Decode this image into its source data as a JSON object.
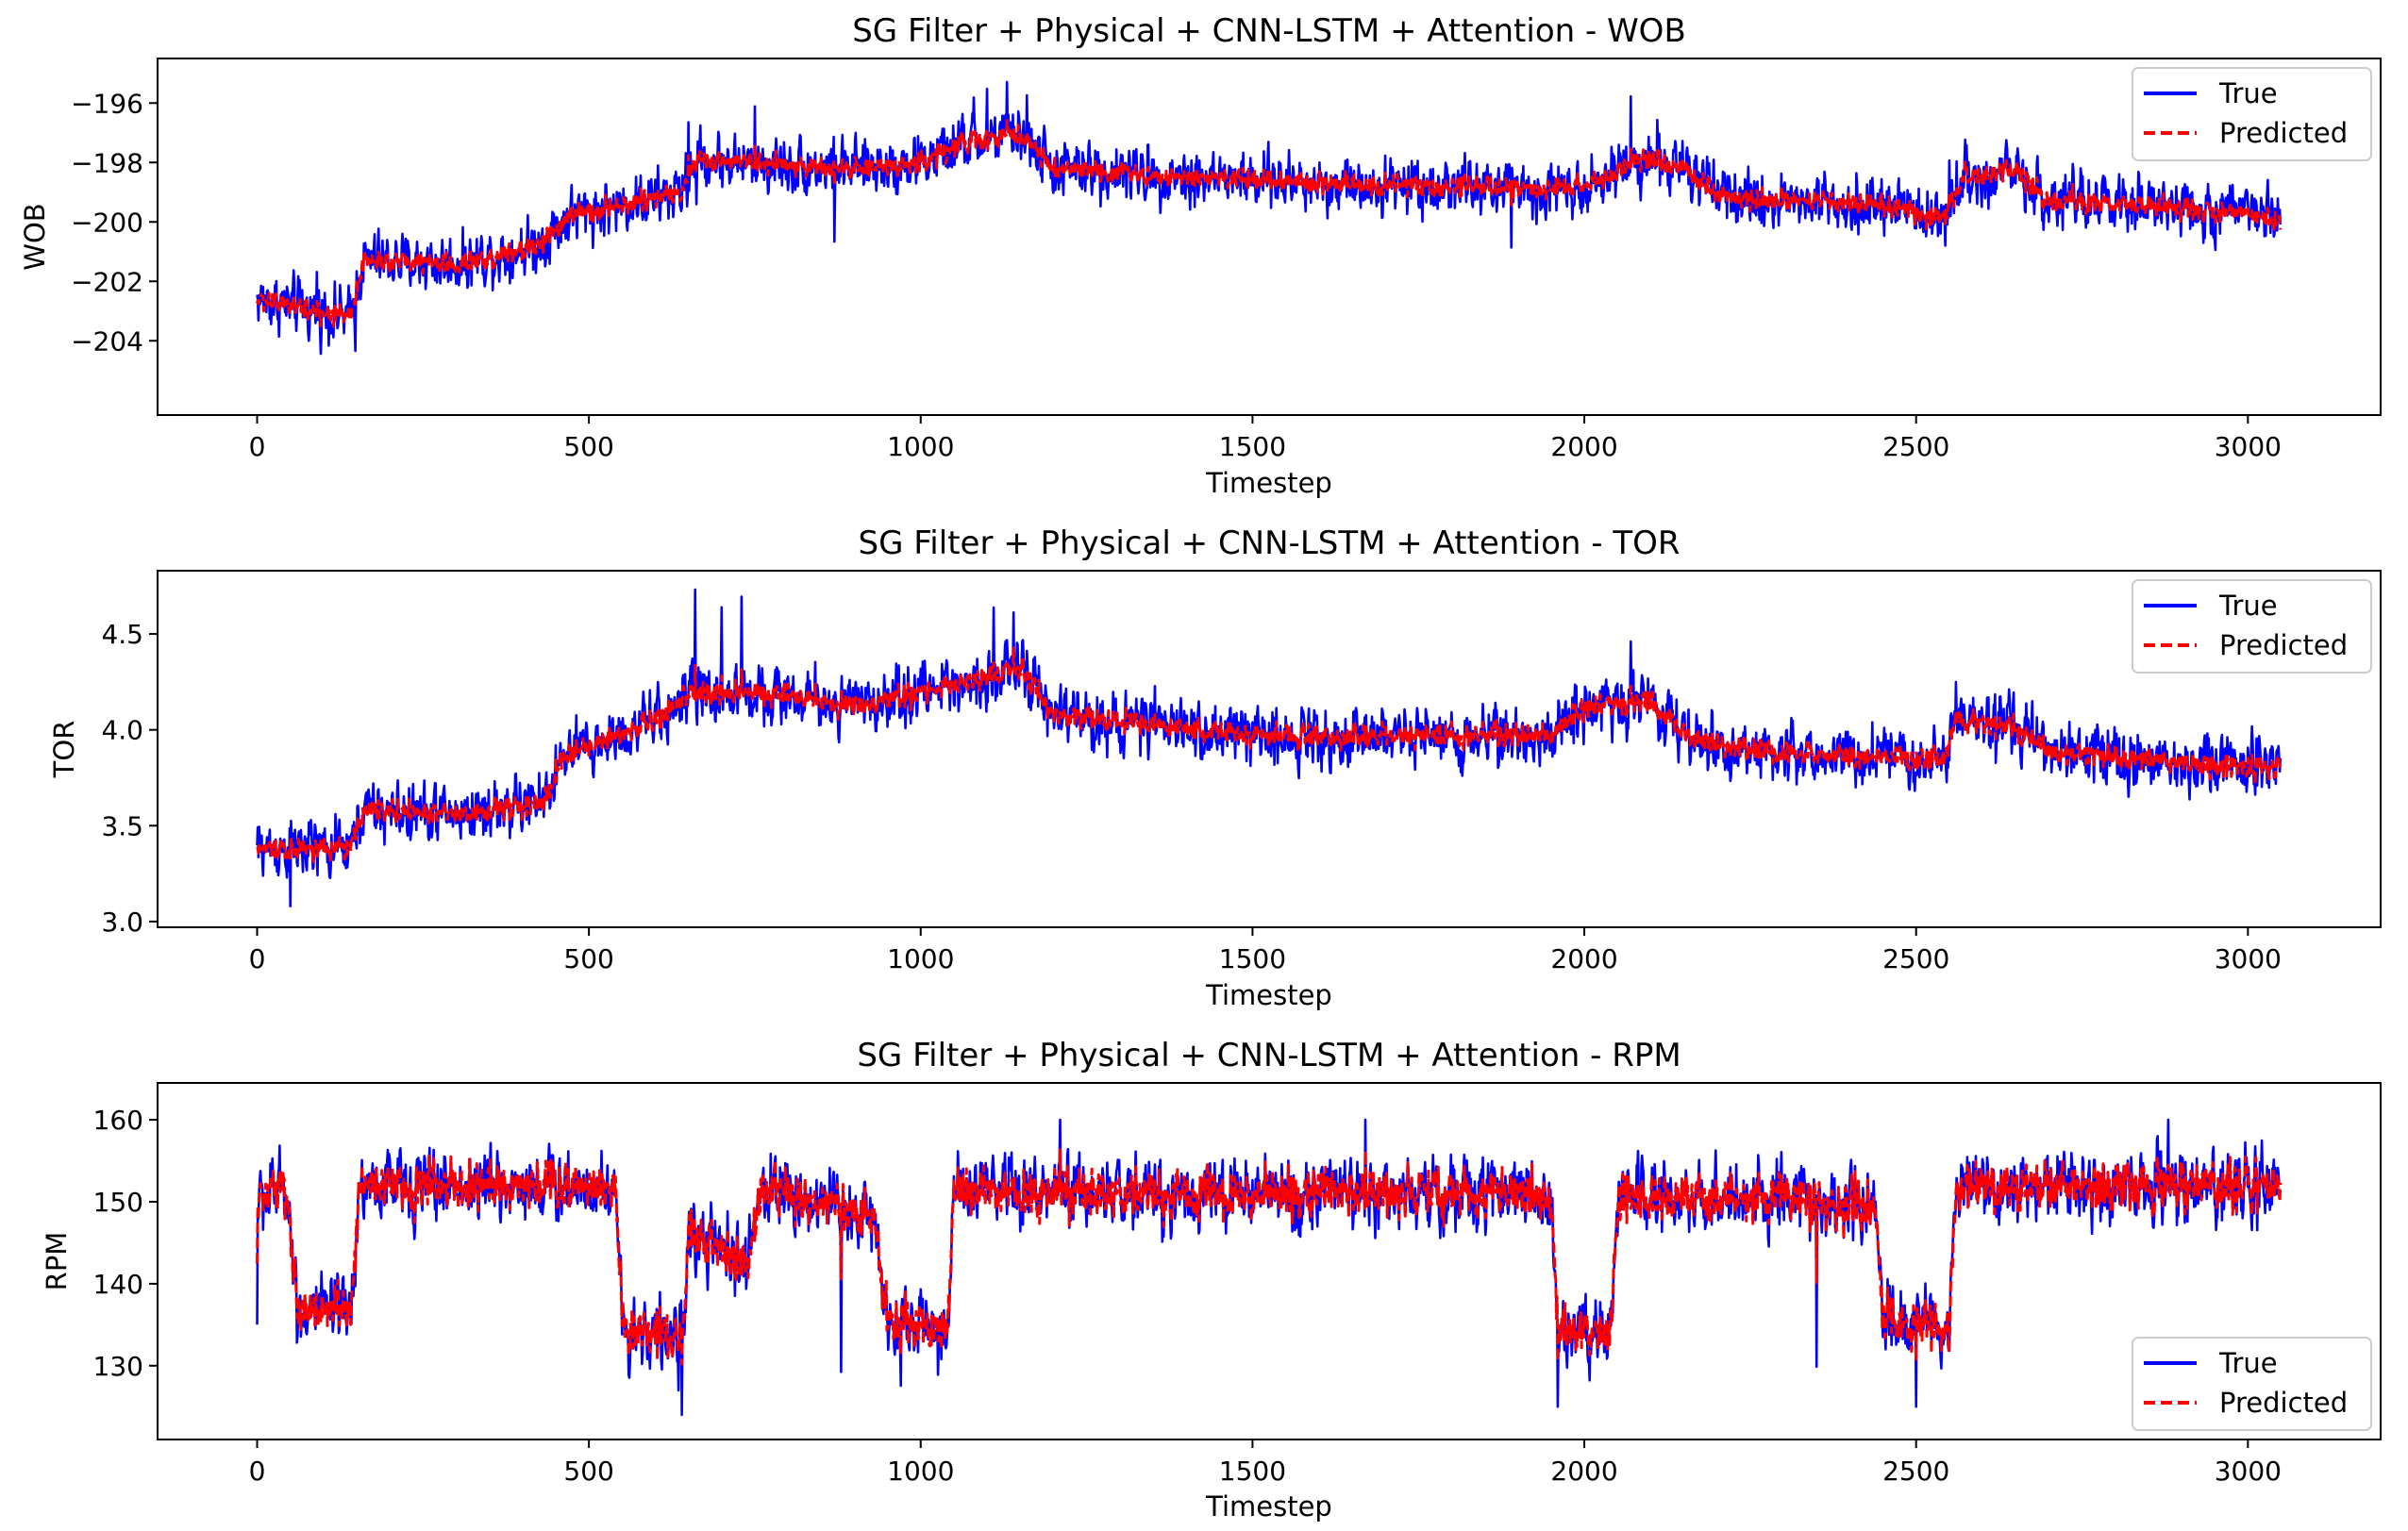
{
  "chart_data": [
    {
      "type": "line",
      "title": "SG Filter + Physical + CNN-LSTM + Attention - WOB",
      "xlabel": "Timestep",
      "ylabel": "WOB",
      "xlim": [
        -150,
        3200
      ],
      "ylim": [
        -206.5,
        -194.5
      ],
      "xticks": [
        0,
        500,
        1000,
        1500,
        2000,
        2500,
        3000
      ],
      "xtick_labels": [
        "0",
        "500",
        "1000",
        "1500",
        "2000",
        "2500",
        "3000"
      ],
      "yticks": [
        -204,
        -202,
        -200,
        -198,
        -196
      ],
      "ytick_labels": [
        "−204",
        "−202",
        "−200",
        "−198",
        "−196"
      ],
      "legend_loc": "upper right",
      "n_points": 3050,
      "series": [
        {
          "name": "True",
          "color": "#0000ff",
          "style": "solid"
        },
        {
          "name": "Predicted",
          "color": "#ff0000",
          "style": "dashed"
        }
      ],
      "trend": [
        [
          0,
          -202.6
        ],
        [
          140,
          -203.2
        ],
        [
          160,
          -201.3
        ],
        [
          300,
          -201.4
        ],
        [
          420,
          -200.8
        ],
        [
          470,
          -199.8
        ],
        [
          640,
          -199.0
        ],
        [
          660,
          -197.9
        ],
        [
          900,
          -198.2
        ],
        [
          1000,
          -198.0
        ],
        [
          1060,
          -197.4
        ],
        [
          1150,
          -197.0
        ],
        [
          1200,
          -198.2
        ],
        [
          1500,
          -198.6
        ],
        [
          1950,
          -198.9
        ],
        [
          2040,
          -198.5
        ],
        [
          2080,
          -197.8
        ],
        [
          2150,
          -198.2
        ],
        [
          2200,
          -199.2
        ],
        [
          2420,
          -199.3
        ],
        [
          2540,
          -199.9
        ],
        [
          2570,
          -198.5
        ],
        [
          2650,
          -198.3
        ],
        [
          2700,
          -199.3
        ],
        [
          3000,
          -199.7
        ],
        [
          3045,
          -200.1
        ]
      ],
      "true_noise": 0.75,
      "pred_noise": 0.3,
      "spikes": [
        [
          650,
          1.8
        ],
        [
          662,
          -1.5
        ],
        [
          750,
          1.9
        ],
        [
          870,
          -2.5
        ],
        [
          1080,
          1.5
        ],
        [
          1100,
          1.7
        ],
        [
          1130,
          1.8
        ],
        [
          1160,
          1.5
        ],
        [
          1890,
          -2.0
        ],
        [
          2070,
          2.2
        ],
        [
          2550,
          1.5
        ],
        [
          2110,
          1.4
        ],
        [
          148,
          -1.9
        ],
        [
          90,
          1.3
        ]
      ]
    },
    {
      "type": "line",
      "title": "SG Filter + Physical + CNN-LSTM + Attention - TOR",
      "xlabel": "Timestep",
      "ylabel": "TOR",
      "xlim": [
        -150,
        3200
      ],
      "ylim": [
        2.97,
        4.83
      ],
      "xticks": [
        0,
        500,
        1000,
        1500,
        2000,
        2500,
        3000
      ],
      "xtick_labels": [
        "0",
        "500",
        "1000",
        "1500",
        "2000",
        "2500",
        "3000"
      ],
      "yticks": [
        3.0,
        3.5,
        4.0,
        4.5
      ],
      "ytick_labels": [
        "3.0",
        "3.5",
        "4.0",
        "4.5"
      ],
      "legend_loc": "upper right",
      "n_points": 3050,
      "series": [
        {
          "name": "True",
          "color": "#0000ff",
          "style": "solid"
        },
        {
          "name": "Predicted",
          "color": "#ff0000",
          "style": "dashed"
        }
      ],
      "trend": [
        [
          0,
          3.38
        ],
        [
          140,
          3.38
        ],
        [
          160,
          3.58
        ],
        [
          300,
          3.56
        ],
        [
          430,
          3.62
        ],
        [
          460,
          3.85
        ],
        [
          600,
          4.05
        ],
        [
          650,
          4.18
        ],
        [
          760,
          4.2
        ],
        [
          900,
          4.12
        ],
        [
          1000,
          4.2
        ],
        [
          1100,
          4.28
        ],
        [
          1150,
          4.32
        ],
        [
          1200,
          4.08
        ],
        [
          1500,
          3.97
        ],
        [
          1950,
          3.97
        ],
        [
          2000,
          4.12
        ],
        [
          2100,
          4.15
        ],
        [
          2160,
          3.95
        ],
        [
          2300,
          3.88
        ],
        [
          2540,
          3.85
        ],
        [
          2560,
          4.05
        ],
        [
          2640,
          4.02
        ],
        [
          2700,
          3.88
        ],
        [
          3000,
          3.8
        ],
        [
          3045,
          3.8
        ]
      ],
      "true_noise": 0.12,
      "pred_noise": 0.05,
      "spikes": [
        [
          660,
          0.55
        ],
        [
          700,
          0.45
        ],
        [
          730,
          0.5
        ],
        [
          1110,
          0.35
        ],
        [
          1140,
          0.3
        ],
        [
          2070,
          0.32
        ],
        [
          2560,
          0.2
        ],
        [
          50,
          -0.3
        ],
        [
          2620,
          -0.2
        ],
        [
          3050,
          -0.12
        ]
      ]
    },
    {
      "type": "line",
      "title": "SG Filter + Physical + CNN-LSTM + Attention - RPM",
      "xlabel": "Timestep",
      "ylabel": "RPM",
      "xlim": [
        -150,
        3200
      ],
      "ylim": [
        121,
        164.5
      ],
      "xticks": [
        0,
        500,
        1000,
        1500,
        2000,
        2500,
        3000
      ],
      "xtick_labels": [
        "0",
        "500",
        "1000",
        "1500",
        "2000",
        "2500",
        "3000"
      ],
      "yticks": [
        130,
        140,
        150,
        160
      ],
      "ytick_labels": [
        "130",
        "140",
        "150",
        "160"
      ],
      "legend_loc": "lower right",
      "n_points": 3050,
      "series": [
        {
          "name": "True",
          "color": "#0000ff",
          "style": "solid"
        },
        {
          "name": "Predicted",
          "color": "#ff0000",
          "style": "dashed"
        }
      ],
      "trend": [
        [
          0,
          150
        ],
        [
          45,
          152
        ],
        [
          60,
          137
        ],
        [
          140,
          136
        ],
        [
          155,
          152
        ],
        [
          540,
          152
        ],
        [
          550,
          135
        ],
        [
          640,
          133
        ],
        [
          650,
          146
        ],
        [
          740,
          142
        ],
        [
          760,
          152
        ],
        [
          850,
          150
        ],
        [
          930,
          148
        ],
        [
          950,
          136
        ],
        [
          1040,
          134
        ],
        [
          1050,
          151
        ],
        [
          1950,
          151
        ],
        [
          1960,
          135
        ],
        [
          2040,
          134
        ],
        [
          2050,
          150
        ],
        [
          2240,
          151
        ],
        [
          2440,
          149
        ],
        [
          2450,
          136
        ],
        [
          2550,
          134
        ],
        [
          2560,
          152
        ],
        [
          3045,
          152
        ]
      ],
      "true_noise": 3.5,
      "pred_noise": 2.6,
      "spikes": [
        [
          0,
          -15
        ],
        [
          640,
          -9
        ],
        [
          1210,
          9
        ],
        [
          1670,
          9
        ],
        [
          2350,
          -20
        ],
        [
          2500,
          -10
        ],
        [
          1960,
          -10
        ],
        [
          970,
          -8
        ],
        [
          880,
          -20
        ],
        [
          2880,
          8
        ]
      ]
    }
  ]
}
